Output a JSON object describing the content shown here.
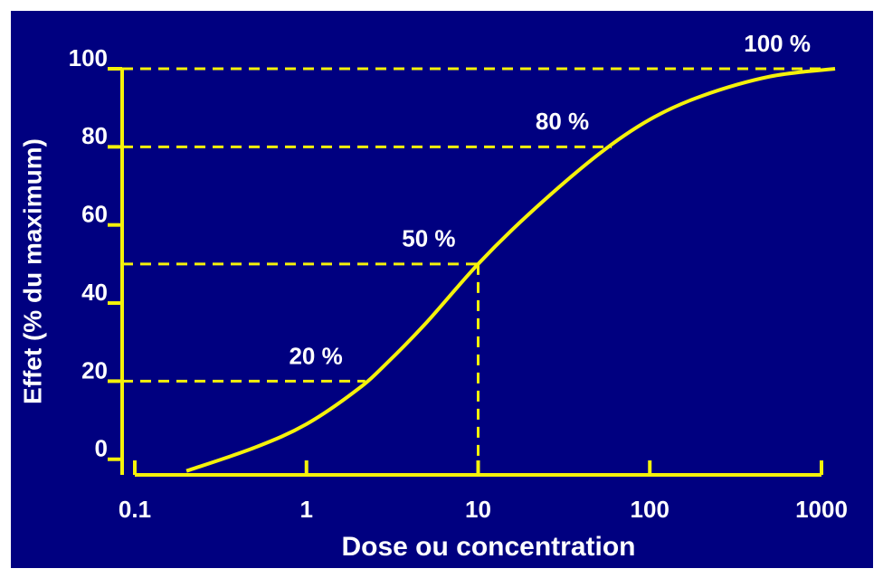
{
  "chart_data": {
    "type": "line",
    "x_label": "Dose ou concentration",
    "y_label": "Effet (% du maximum)",
    "log_x": true,
    "x": [
      0.2,
      0.5,
      1,
      2,
      3,
      5,
      10,
      20,
      50,
      100,
      200,
      500,
      1200
    ],
    "values": [
      -3,
      3,
      9,
      18,
      25,
      35,
      50,
      63,
      78,
      87,
      93,
      98,
      100
    ],
    "color": "#f5f20a",
    "xlim": [
      0.1,
      1000
    ],
    "xticks": [
      0.1,
      1,
      10,
      100,
      1000
    ],
    "ylim": [
      -4,
      100
    ],
    "yticks": [
      0,
      20,
      40,
      60,
      80,
      100
    ],
    "annotations": [
      {
        "text": "20 %",
        "x": 2.2,
        "y": 20
      },
      {
        "text": "50 %",
        "x": 10,
        "y": 50
      },
      {
        "text": "80 %",
        "x": 60,
        "y": 80
      },
      {
        "text": "100 %",
        "x": 1000,
        "y": 100
      }
    ]
  }
}
